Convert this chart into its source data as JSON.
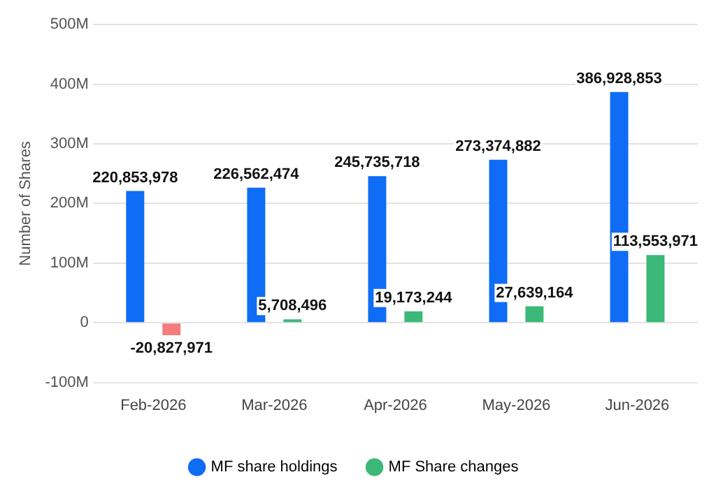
{
  "chart_data": {
    "type": "bar",
    "ylabel": "Number of Shares",
    "categories": [
      "Feb-2026",
      "Mar-2026",
      "Apr-2026",
      "May-2026",
      "Jun-2026"
    ],
    "series": [
      {
        "name": "MF share holdings",
        "color": "#0f6cf5",
        "values": [
          220853978,
          226562474,
          245735718,
          273374882,
          386928853
        ],
        "value_labels": [
          "220,853,978",
          "226,562,474",
          "245,735,718",
          "273,374,882",
          "386,928,853"
        ]
      },
      {
        "name": "MF Share changes",
        "colors": [
          "#f47c7c",
          "#3cb878",
          "#3cb878",
          "#3cb878",
          "#3cb878"
        ],
        "values": [
          -20827971,
          5708496,
          19173244,
          27639164,
          113553971
        ],
        "value_labels": [
          "-20,827,971",
          "5,708,496",
          "19,173,244",
          "27,639,164",
          "113,553,971"
        ]
      }
    ],
    "ylim": [
      -100000000,
      500000000
    ],
    "yticks": [
      {
        "value": -100000000,
        "label": "-100M"
      },
      {
        "value": 0,
        "label": "0"
      },
      {
        "value": 100000000,
        "label": "100M"
      },
      {
        "value": 200000000,
        "label": "200M"
      },
      {
        "value": 300000000,
        "label": "300M"
      },
      {
        "value": 400000000,
        "label": "400M"
      },
      {
        "value": 500000000,
        "label": "500M"
      }
    ],
    "grid": "y",
    "legend": "bottom"
  }
}
